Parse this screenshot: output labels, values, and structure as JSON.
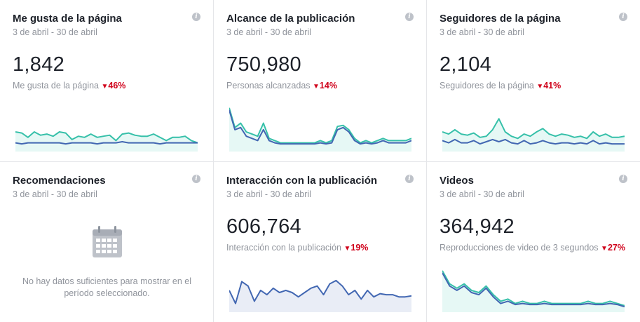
{
  "cards": [
    {
      "title": "Me gusta de la página",
      "date": "3 de abril - 30 de abril",
      "value": "1,842",
      "label": "Me gusta de la página",
      "change": "46%",
      "chart": {
        "teal": [
          68,
          67,
          63,
          68,
          65,
          66,
          64,
          68,
          67,
          61,
          64,
          63,
          66,
          63,
          64,
          65,
          60,
          66,
          67,
          65,
          64,
          64,
          66,
          63,
          60,
          63,
          63,
          64,
          60,
          58
        ],
        "blue": [
          58,
          57,
          58,
          58,
          58,
          58,
          58,
          58,
          57,
          58,
          58,
          58,
          58,
          57,
          58,
          58,
          58,
          59,
          58,
          58,
          58,
          58,
          58,
          57,
          58,
          58,
          58,
          58,
          58,
          58
        ]
      }
    },
    {
      "title": "Alcance de la publicación",
      "date": "3 de abril - 30 de abril",
      "value": "750,980",
      "label": "Personas alcanzadas",
      "change": "14%",
      "chart": {
        "teal": [
          90,
          72,
          76,
          68,
          66,
          64,
          76,
          62,
          60,
          58,
          58,
          58,
          58,
          58,
          58,
          58,
          60,
          58,
          60,
          73,
          74,
          70,
          62,
          58,
          60,
          58,
          60,
          62,
          60,
          60,
          60,
          60,
          62
        ],
        "blue": [
          88,
          70,
          72,
          64,
          62,
          60,
          70,
          60,
          58,
          57,
          57,
          57,
          57,
          57,
          57,
          57,
          58,
          57,
          58,
          70,
          72,
          68,
          60,
          57,
          58,
          57,
          58,
          60,
          58,
          58,
          58,
          58,
          60
        ]
      }
    },
    {
      "title": "Seguidores de la página",
      "date": "3 de abril - 30 de abril",
      "value": "2,104",
      "label": "Seguidores de la página",
      "change": "41%",
      "chart": {
        "teal": [
          68,
          66,
          70,
          66,
          65,
          67,
          63,
          64,
          70,
          80,
          68,
          64,
          62,
          66,
          64,
          68,
          71,
          66,
          64,
          66,
          65,
          63,
          64,
          62,
          68,
          64,
          66,
          63,
          63,
          64
        ],
        "blue": [
          60,
          58,
          61,
          58,
          58,
          60,
          57,
          59,
          61,
          59,
          61,
          58,
          57,
          60,
          57,
          58,
          60,
          58,
          57,
          58,
          58,
          57,
          58,
          57,
          60,
          57,
          58,
          57,
          57,
          57
        ]
      }
    },
    {
      "title": "Recomendaciones",
      "date": "3 de abril - 30 de abril",
      "no_data": "No hay datos suficientes para mostrar en el período seleccionado."
    },
    {
      "title": "Interacción con la publicación",
      "date": "3 de abril - 30 de abril",
      "value": "606,764",
      "label": "Interacción con la publicación",
      "change": "19%",
      "chart": {
        "blue": [
          70,
          58,
          78,
          74,
          60,
          70,
          66,
          72,
          68,
          70,
          68,
          64,
          68,
          72,
          74,
          66,
          76,
          79,
          74,
          66,
          70,
          62,
          70,
          64,
          67,
          66,
          66,
          64,
          64,
          65
        ]
      }
    },
    {
      "title": "Videos",
      "date": "3 de abril - 30 de abril",
      "value": "364,942",
      "label": "Reproducciones de video de 3 segundos",
      "change": "27%",
      "chart": {
        "teal": [
          88,
          76,
          72,
          76,
          70,
          68,
          74,
          66,
          60,
          62,
          58,
          60,
          58,
          58,
          60,
          58,
          58,
          58,
          58,
          58,
          60,
          58,
          58,
          60,
          58,
          56
        ],
        "blue": [
          86,
          74,
          70,
          74,
          68,
          66,
          72,
          64,
          58,
          60,
          57,
          58,
          57,
          57,
          58,
          57,
          57,
          57,
          57,
          57,
          58,
          57,
          57,
          58,
          57,
          55
        ]
      }
    }
  ],
  "colors": {
    "teal": "#36c0a9",
    "blue": "#4267b2",
    "teal_fill": "#e6f8f5",
    "blue_fill": "#e9edf6",
    "down": "#d0021b"
  }
}
